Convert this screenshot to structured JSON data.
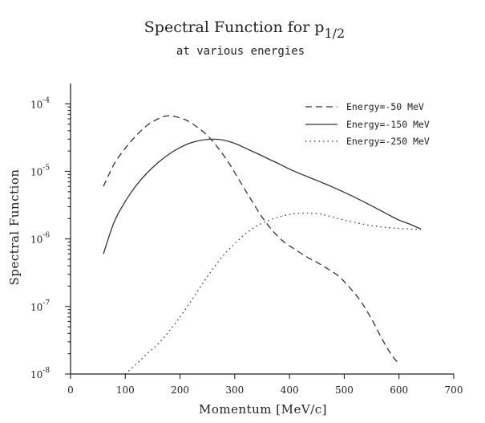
{
  "chart_data": {
    "type": "line",
    "title": "Spectral Function for p",
    "title_subscript": "1/2",
    "subtitle": "at various energies",
    "xlabel": "Momentum [MeV/c]",
    "ylabel": "Spectral Function",
    "xlim": [
      0,
      700
    ],
    "ylim": [
      1e-08,
      0.0002
    ],
    "yscale": "log",
    "x_ticks": [
      0,
      100,
      200,
      300,
      400,
      500,
      600,
      700
    ],
    "x_tick_labels": [
      "0",
      "100",
      "200",
      "300",
      "400",
      "500",
      "600",
      "700"
    ],
    "y_ticks": [
      {
        "value": 1e-08,
        "base": "10",
        "exponent": "-8"
      },
      {
        "value": 1e-07,
        "base": "10",
        "exponent": "-7"
      },
      {
        "value": 1e-06,
        "base": "10",
        "exponent": "-6"
      },
      {
        "value": 1e-05,
        "base": "10",
        "exponent": "-5"
      },
      {
        "value": 0.0001,
        "base": "10",
        "exponent": "-4"
      }
    ],
    "legend_position": "top-right",
    "series": [
      {
        "name": "Energy=-50 MeV",
        "style": "dashed",
        "x": [
          60,
          80,
          100,
          120,
          140,
          160,
          175,
          190,
          210,
          230,
          250,
          270,
          290,
          310,
          330,
          350,
          370,
          390,
          410,
          430,
          450,
          470,
          490,
          510,
          530,
          550,
          570,
          585,
          600
        ],
        "y": [
          6e-06,
          1.3e-05,
          2.2e-05,
          3.4e-05,
          4.8e-05,
          6e-05,
          6.6e-05,
          6.5e-05,
          5.8e-05,
          4.6e-05,
          3.4e-05,
          2.2e-05,
          1.3e-05,
          7e-06,
          3.8e-06,
          2.1e-06,
          1.3e-06,
          9e-07,
          7e-07,
          5.5e-07,
          4.5e-07,
          3.6e-07,
          2.8e-07,
          1.9e-07,
          1.2e-07,
          6.5e-08,
          3.2e-08,
          2e-08,
          1.4e-08
        ]
      },
      {
        "name": "Energy=-150 MeV",
        "style": "solid",
        "x": [
          60,
          80,
          100,
          120,
          140,
          160,
          180,
          200,
          220,
          240,
          260,
          280,
          300,
          320,
          340,
          360,
          380,
          400,
          420,
          440,
          460,
          480,
          500,
          520,
          540,
          560,
          580,
          600,
          620,
          640
        ],
        "y": [
          6e-07,
          1.8e-06,
          3.6e-06,
          6.2e-06,
          9.5e-06,
          1.35e-05,
          1.8e-05,
          2.25e-05,
          2.65e-05,
          2.9e-05,
          3e-05,
          2.9e-05,
          2.6e-05,
          2.2e-05,
          1.85e-05,
          1.55e-05,
          1.3e-05,
          1.08e-05,
          9.2e-06,
          7.9e-06,
          6.8e-06,
          5.8e-06,
          4.9e-06,
          4.1e-06,
          3.4e-06,
          2.8e-06,
          2.3e-06,
          1.9e-06,
          1.65e-06,
          1.4e-06
        ]
      },
      {
        "name": "Energy=-250 MeV",
        "style": "dotted",
        "x": [
          100,
          120,
          140,
          160,
          180,
          200,
          220,
          240,
          260,
          280,
          300,
          320,
          340,
          360,
          380,
          400,
          420,
          440,
          460,
          480,
          500,
          520,
          540,
          560,
          580,
          600,
          620,
          640
        ],
        "y": [
          1e-08,
          1.4e-08,
          2e-08,
          2.8e-08,
          4.3e-08,
          7e-08,
          1.2e-07,
          2.1e-07,
          3.6e-07,
          5.8e-07,
          8.5e-07,
          1.2e-06,
          1.55e-06,
          1.85e-06,
          2.1e-06,
          2.3e-06,
          2.4e-06,
          2.4e-06,
          2.3e-06,
          2.1e-06,
          1.9e-06,
          1.75e-06,
          1.62e-06,
          1.53e-06,
          1.47e-06,
          1.43e-06,
          1.4e-06,
          1.38e-06
        ]
      }
    ]
  }
}
